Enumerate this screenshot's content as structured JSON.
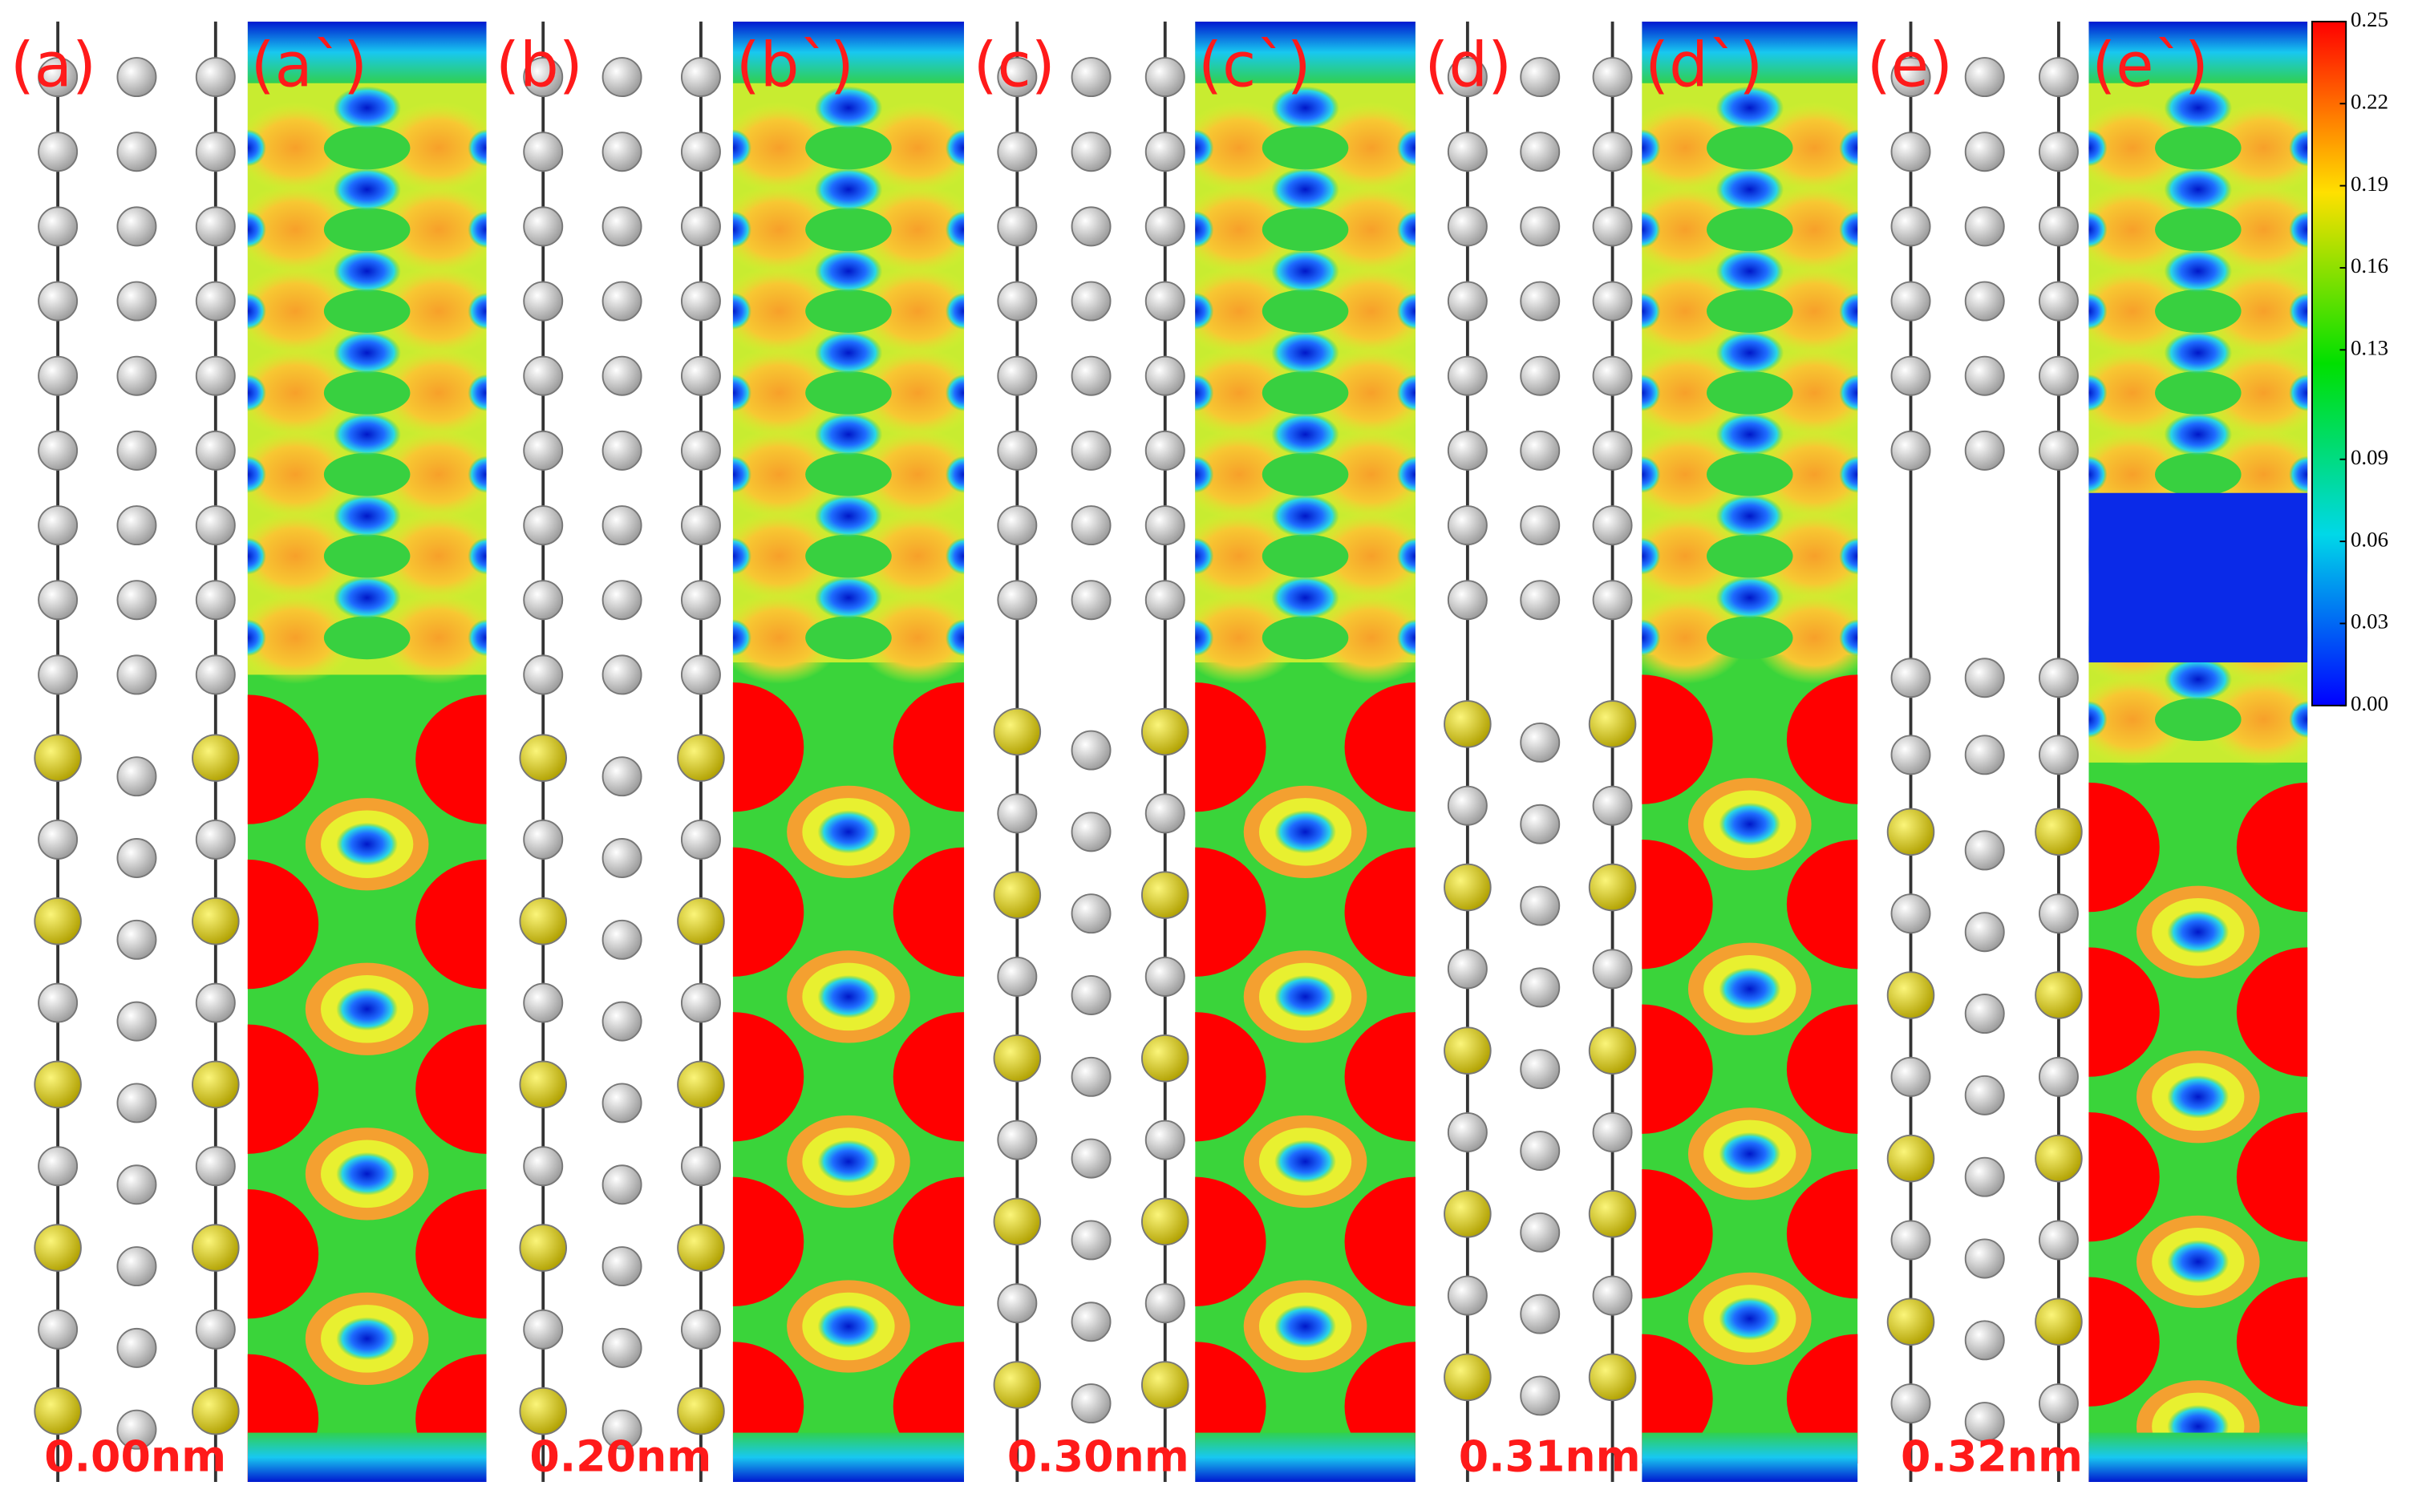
{
  "structure_panels": [
    {
      "label": "(a)",
      "distance": "0.00nm"
    },
    {
      "label": "(b)",
      "distance": "0.20nm"
    },
    {
      "label": "(c)",
      "distance": "0.30nm"
    },
    {
      "label": "(d)",
      "distance": "0.31nm"
    },
    {
      "label": "(e)",
      "distance": "0.32nm"
    }
  ],
  "density_panels": [
    {
      "label": "(a`)"
    },
    {
      "label": "(b`)"
    },
    {
      "label": "(c`)"
    },
    {
      "label": "(d`)"
    },
    {
      "label": "(e`)"
    }
  ],
  "colorbar": {
    "range": [
      0,
      0.25
    ],
    "ticks": [
      {
        "value": 0.25,
        "label": "0.25"
      },
      {
        "value": 0.22,
        "label": "0.22"
      },
      {
        "value": 0.19,
        "label": "0.19"
      },
      {
        "value": 0.16,
        "label": "0.16"
      },
      {
        "value": 0.13,
        "label": "0.13"
      },
      {
        "value": 0.09,
        "label": "0.09"
      },
      {
        "value": 0.06,
        "label": "0.06"
      },
      {
        "value": 0.03,
        "label": "0.03"
      },
      {
        "value": 0,
        "label": "0.00"
      }
    ]
  }
}
